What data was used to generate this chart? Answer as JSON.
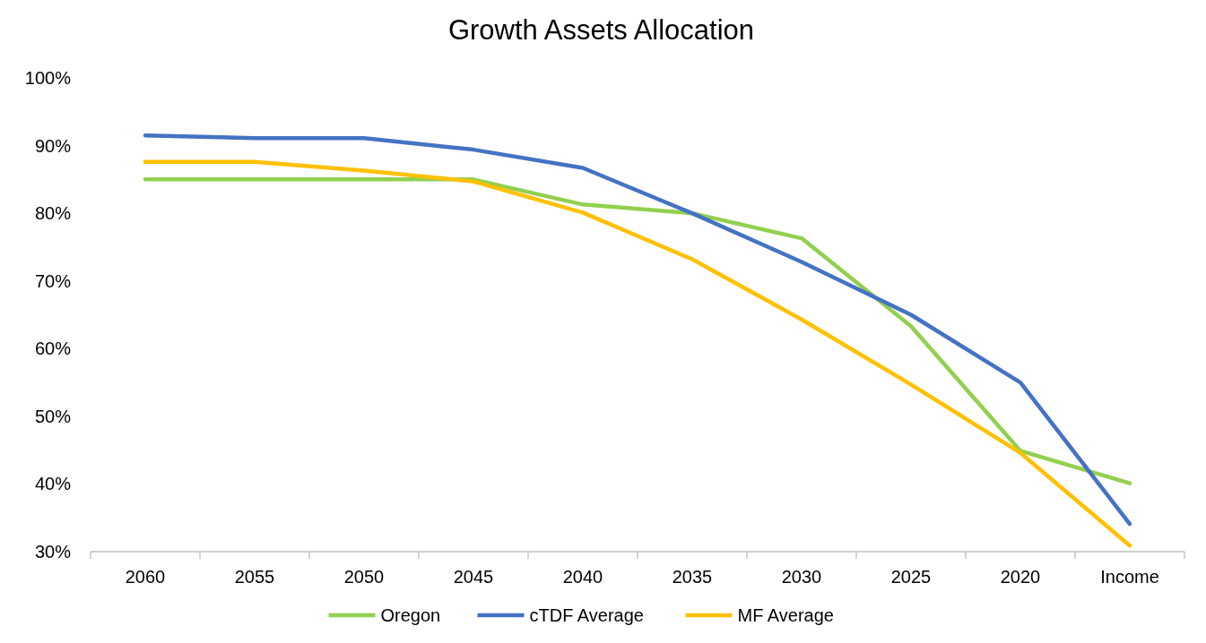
{
  "chart_data": {
    "type": "line",
    "title": "Growth Assets Allocation",
    "categories": [
      "2060",
      "2055",
      "2050",
      "2045",
      "2040",
      "2035",
      "2030",
      "2025",
      "2020",
      "Income"
    ],
    "series": [
      {
        "name": "Oregon",
        "color": "#92d050",
        "values": [
          85,
          85,
          85,
          85,
          81.3,
          80,
          76.3,
          63.3,
          44.9,
          40.1
        ]
      },
      {
        "name": "cTDF Average",
        "color": "#4472c4",
        "values": [
          91.5,
          91.1,
          91.1,
          89.4,
          86.7,
          80,
          72.8,
          65,
          55,
          34.1
        ]
      },
      {
        "name": "MF Average",
        "color": "#ffc000",
        "values": [
          87.6,
          87.6,
          86.3,
          84.7,
          80.1,
          73.2,
          64.3,
          54.7,
          44.6,
          30.9
        ]
      }
    ],
    "ylim": [
      30,
      100
    ],
    "yticks": [
      {
        "value": 30,
        "label": "30%"
      },
      {
        "value": 40,
        "label": "40%"
      },
      {
        "value": 50,
        "label": "50%"
      },
      {
        "value": 60,
        "label": "60%"
      },
      {
        "value": 70,
        "label": "70%"
      },
      {
        "value": 80,
        "label": "80%"
      },
      {
        "value": 90,
        "label": "90%"
      },
      {
        "value": 100,
        "label": "100%"
      }
    ],
    "grid": false,
    "legend": "bottom",
    "line_style": "solid"
  }
}
